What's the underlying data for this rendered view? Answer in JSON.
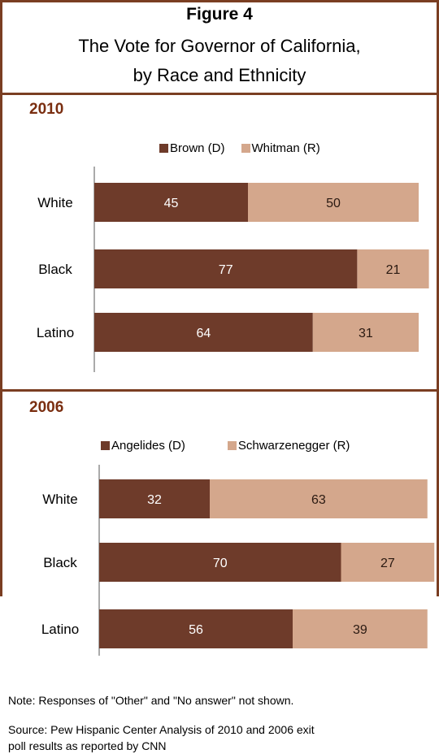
{
  "figure": {
    "number": "Figure 4",
    "title_line1": "The Vote for Governor of California,",
    "title_line2": "by Race and Ethnicity"
  },
  "colors": {
    "democrat": "#6e3b2a",
    "republican": "#d4a78c",
    "frame": "#7a3e22",
    "year": "#7a2e10"
  },
  "chart_data": [
    {
      "type": "bar",
      "orientation": "horizontal",
      "stacked": true,
      "title": "2010",
      "categories": [
        "White",
        "Black",
        "Latino"
      ],
      "series": [
        {
          "name": "Brown (D)",
          "values": [
            45,
            77,
            64
          ],
          "color": "#6e3b2a"
        },
        {
          "name": "Whitman (R)",
          "values": [
            50,
            21,
            31
          ],
          "color": "#d4a78c"
        }
      ],
      "xlim": [
        0,
        100
      ],
      "grid": false,
      "legend": "top"
    },
    {
      "type": "bar",
      "orientation": "horizontal",
      "stacked": true,
      "title": "2006",
      "categories": [
        "White",
        "Black",
        "Latino"
      ],
      "series": [
        {
          "name": "Angelides (D)",
          "values": [
            32,
            70,
            56
          ],
          "color": "#6e3b2a"
        },
        {
          "name": "Schwarzenegger (R)",
          "values": [
            63,
            27,
            39
          ],
          "color": "#d4a78c"
        }
      ],
      "xlim": [
        0,
        100
      ],
      "grid": false,
      "legend": "top"
    }
  ],
  "notes": {
    "note": "Note: Responses of \"Other\" and \"No answer\" not shown.",
    "source_line1": "Source: Pew Hispanic Center Analysis of 2010 and 2006 exit",
    "source_line2": "poll results as reported by CNN"
  }
}
